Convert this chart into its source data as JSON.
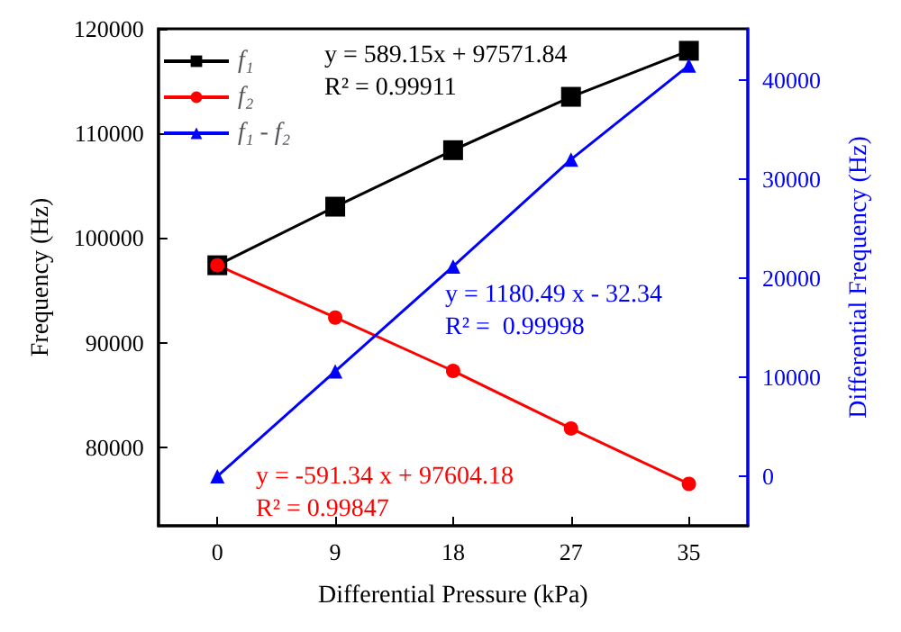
{
  "chart_data": {
    "type": "line",
    "xlabel": "Differential Pressure (kPa)",
    "ylabel": "Frequency (Hz)",
    "y2label": "Differential Frequency (Hz)",
    "categories": [
      "0",
      "9",
      "18",
      "27",
      "35"
    ],
    "series": [
      {
        "name": "f₁",
        "color": "#000000",
        "marker": "square",
        "values": [
          97400,
          103000,
          108400,
          113500,
          117900
        ]
      },
      {
        "name": "f₂",
        "color": "#ff0000",
        "marker": "circle",
        "values": [
          97400,
          92400,
          87300,
          81800,
          76500
        ]
      },
      {
        "name": "f₁ - f₂",
        "color": "#0000ff",
        "marker": "triangle",
        "axis": "y2",
        "values": [
          0,
          10600,
          21200,
          32000,
          41500
        ]
      }
    ],
    "ylim": [
      72500,
      120000
    ],
    "yticks": [
      80000,
      90000,
      100000,
      110000,
      120000
    ],
    "y2lim": [
      -5000,
      45200
    ],
    "y2ticks": [
      0,
      10000,
      20000,
      30000,
      40000
    ],
    "annotations": [
      "y = 589.15x + 97571.84\nR² = 0.99911",
      "y = -591.34 x + 97604.18\nR² = 0.99847",
      "y = 1180.49 x - 32.34\nR² =  0.99998"
    ],
    "legend": "top left",
    "grid": false,
    "line_style": "solid"
  }
}
